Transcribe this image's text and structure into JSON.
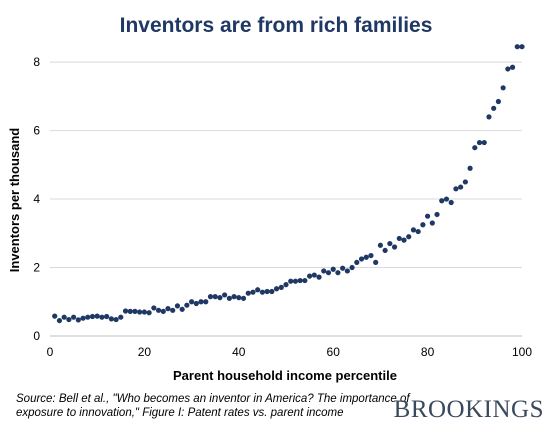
{
  "chart_data": {
    "type": "scatter",
    "title": "Inventors are from rich families",
    "xlabel": "Parent household income percentile",
    "ylabel": "Inventors per thousand",
    "xlim": [
      0,
      100
    ],
    "ylim": [
      0,
      8.5
    ],
    "xticks": [
      0,
      20,
      40,
      60,
      80,
      100
    ],
    "yticks": [
      0,
      2,
      4,
      6,
      8
    ],
    "grid": "horizontal",
    "marker_color": "#1f3864",
    "x": [
      1,
      2,
      3,
      4,
      5,
      6,
      7,
      8,
      9,
      10,
      11,
      12,
      13,
      14,
      15,
      16,
      17,
      18,
      19,
      20,
      21,
      22,
      23,
      24,
      25,
      26,
      27,
      28,
      29,
      30,
      31,
      32,
      33,
      34,
      35,
      36,
      37,
      38,
      39,
      40,
      41,
      42,
      43,
      44,
      45,
      46,
      47,
      48,
      49,
      50,
      51,
      52,
      53,
      54,
      55,
      56,
      57,
      58,
      59,
      60,
      61,
      62,
      63,
      64,
      65,
      66,
      67,
      68,
      69,
      70,
      71,
      72,
      73,
      74,
      75,
      76,
      77,
      78,
      79,
      80,
      81,
      82,
      83,
      84,
      85,
      86,
      87,
      88,
      89,
      90,
      91,
      92,
      93,
      94,
      95,
      96,
      97,
      98,
      99,
      100
    ],
    "y": [
      0.58,
      0.45,
      0.55,
      0.48,
      0.55,
      0.47,
      0.52,
      0.55,
      0.57,
      0.58,
      0.55,
      0.57,
      0.5,
      0.48,
      0.55,
      0.73,
      0.72,
      0.72,
      0.7,
      0.7,
      0.68,
      0.82,
      0.75,
      0.72,
      0.8,
      0.75,
      0.88,
      0.78,
      0.9,
      1.0,
      0.95,
      1.0,
      1.0,
      1.15,
      1.15,
      1.12,
      1.2,
      1.1,
      1.15,
      1.12,
      1.1,
      1.25,
      1.28,
      1.35,
      1.28,
      1.3,
      1.3,
      1.38,
      1.42,
      1.5,
      1.6,
      1.6,
      1.62,
      1.62,
      1.75,
      1.78,
      1.72,
      1.9,
      1.85,
      1.95,
      1.85,
      1.98,
      1.9,
      2.0,
      2.15,
      2.25,
      2.3,
      2.35,
      2.15,
      2.65,
      2.5,
      2.7,
      2.6,
      2.85,
      2.8,
      2.9,
      3.1,
      3.05,
      3.25,
      3.5,
      3.3,
      3.55,
      3.95,
      4.0,
      3.9,
      4.3,
      4.35,
      4.5,
      4.9,
      5.5,
      5.65,
      5.65,
      6.4,
      6.65,
      6.85,
      7.25,
      7.8,
      7.85,
      8.45,
      8.45
    ]
  },
  "source_note": "Source: Bell et al., \"Who becomes an inventor in America? The importance of exposure to innovation,\" Figure I: Patent rates vs. parent income",
  "brand": "BROOKINGS"
}
